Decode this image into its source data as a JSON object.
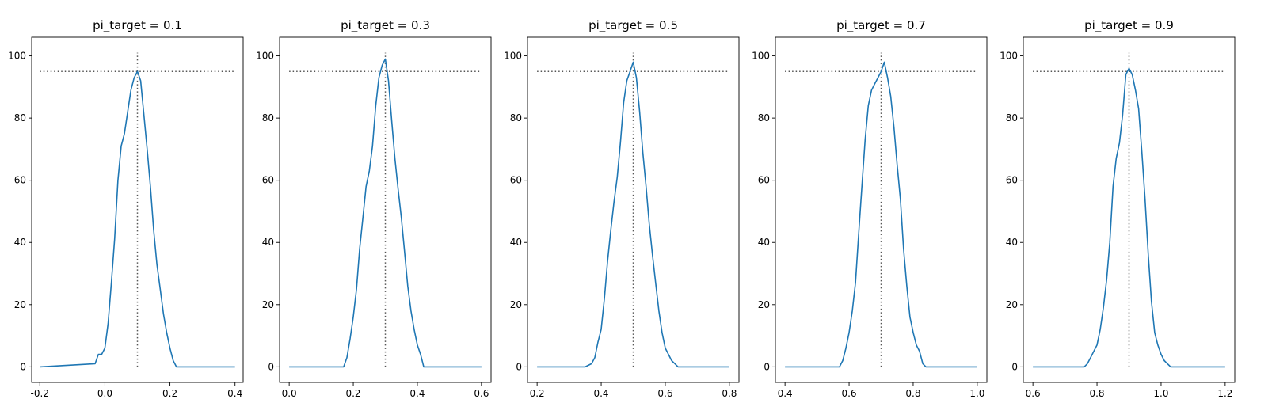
{
  "colors": {
    "line": "#1f77b4",
    "reference": "#555555",
    "axes": "#000000",
    "background": "#ffffff"
  },
  "chart_data": [
    {
      "type": "line",
      "title": "pi_target = 0.1",
      "xlabel": "",
      "ylabel": "",
      "xlim": [
        -0.225,
        0.425
      ],
      "ylim": [
        -5,
        106
      ],
      "xticks": [
        -0.2,
        0.0,
        0.2,
        0.4
      ],
      "xtick_labels": [
        "-0.2",
        "0.0",
        "0.2",
        "0.4"
      ],
      "yticks": [
        0,
        20,
        40,
        60,
        80,
        100
      ],
      "ytick_labels": [
        "0",
        "20",
        "40",
        "60",
        "80",
        "100"
      ],
      "grid": false,
      "target": 0.1,
      "reference_level": 95,
      "vline": {
        "x": 0.1,
        "y": [
          0,
          101
        ]
      },
      "hline": {
        "y": 95,
        "x": [
          -0.2,
          0.4
        ]
      },
      "series": [
        {
          "x": [
            -0.2,
            -0.03,
            -0.02,
            -0.01,
            0.0,
            0.01,
            0.02,
            0.03,
            0.04,
            0.05,
            0.06,
            0.07,
            0.08,
            0.09,
            0.1,
            0.11,
            0.12,
            0.13,
            0.14,
            0.15,
            0.16,
            0.17,
            0.18,
            0.19,
            0.2,
            0.21,
            0.22,
            0.23,
            0.4
          ],
          "y": [
            0,
            1,
            4,
            4,
            6,
            14,
            27,
            41,
            60,
            71,
            75,
            82,
            89,
            93,
            95,
            92,
            81,
            70,
            58,
            44,
            33,
            25,
            17,
            11,
            6,
            2,
            0,
            0,
            0
          ]
        }
      ]
    },
    {
      "type": "line",
      "title": "pi_target = 0.3",
      "xlabel": "",
      "ylabel": "",
      "xlim": [
        -0.03,
        0.63
      ],
      "ylim": [
        -5,
        106
      ],
      "xticks": [
        0.0,
        0.2,
        0.4,
        0.6
      ],
      "xtick_labels": [
        "0.0",
        "0.2",
        "0.4",
        "0.6"
      ],
      "yticks": [
        0,
        20,
        40,
        60,
        80,
        100
      ],
      "ytick_labels": [
        "0",
        "20",
        "40",
        "60",
        "80",
        "100"
      ],
      "grid": false,
      "target": 0.3,
      "reference_level": 95,
      "vline": {
        "x": 0.3,
        "y": [
          0,
          101
        ]
      },
      "hline": {
        "y": 95,
        "x": [
          0.0,
          0.6
        ]
      },
      "series": [
        {
          "x": [
            0.0,
            0.17,
            0.18,
            0.19,
            0.2,
            0.21,
            0.22,
            0.23,
            0.24,
            0.25,
            0.26,
            0.27,
            0.28,
            0.29,
            0.3,
            0.31,
            0.32,
            0.33,
            0.34,
            0.35,
            0.36,
            0.37,
            0.38,
            0.39,
            0.4,
            0.41,
            0.42,
            0.43,
            0.6
          ],
          "y": [
            0,
            0,
            3,
            9,
            16,
            25,
            38,
            48,
            58,
            63,
            71,
            84,
            93,
            97,
            99,
            92,
            79,
            67,
            57,
            48,
            37,
            26,
            18,
            12,
            7,
            4,
            0,
            0,
            0
          ]
        }
      ]
    },
    {
      "type": "line",
      "title": "pi_target = 0.5",
      "xlabel": "",
      "ylabel": "",
      "xlim": [
        0.17,
        0.83
      ],
      "ylim": [
        -5,
        106
      ],
      "xticks": [
        0.2,
        0.4,
        0.6,
        0.8
      ],
      "xtick_labels": [
        "0.2",
        "0.4",
        "0.6",
        "0.8"
      ],
      "yticks": [
        0,
        20,
        40,
        60,
        80,
        100
      ],
      "ytick_labels": [
        "0",
        "20",
        "40",
        "60",
        "80",
        "100"
      ],
      "grid": false,
      "target": 0.5,
      "reference_level": 95,
      "vline": {
        "x": 0.5,
        "y": [
          0,
          101
        ]
      },
      "hline": {
        "y": 95,
        "x": [
          0.2,
          0.8
        ]
      },
      "series": [
        {
          "x": [
            0.2,
            0.35,
            0.37,
            0.38,
            0.39,
            0.4,
            0.41,
            0.42,
            0.43,
            0.44,
            0.45,
            0.46,
            0.47,
            0.48,
            0.49,
            0.5,
            0.51,
            0.52,
            0.53,
            0.54,
            0.55,
            0.56,
            0.57,
            0.58,
            0.59,
            0.6,
            0.61,
            0.62,
            0.63,
            0.64,
            0.66,
            0.8
          ],
          "y": [
            0,
            0,
            1,
            3,
            8,
            12,
            22,
            34,
            44,
            53,
            61,
            72,
            85,
            92,
            95,
            98,
            93,
            82,
            69,
            58,
            46,
            36,
            27,
            18,
            11,
            6,
            4,
            2,
            1,
            0,
            0,
            0
          ]
        }
      ]
    },
    {
      "type": "line",
      "title": "pi_target = 0.7",
      "xlabel": "",
      "ylabel": "",
      "xlim": [
        0.37,
        1.03
      ],
      "ylim": [
        -5,
        106
      ],
      "xticks": [
        0.4,
        0.6,
        0.8,
        1.0
      ],
      "xtick_labels": [
        "0.4",
        "0.6",
        "0.8",
        "1.0"
      ],
      "yticks": [
        0,
        20,
        40,
        60,
        80,
        100
      ],
      "ytick_labels": [
        "0",
        "20",
        "40",
        "60",
        "80",
        "100"
      ],
      "grid": false,
      "target": 0.7,
      "reference_level": 95,
      "vline": {
        "x": 0.7,
        "y": [
          0,
          101
        ]
      },
      "hline": {
        "y": 95,
        "x": [
          0.4,
          1.0
        ]
      },
      "series": [
        {
          "x": [
            0.4,
            0.57,
            0.58,
            0.59,
            0.6,
            0.61,
            0.62,
            0.63,
            0.64,
            0.65,
            0.66,
            0.67,
            0.68,
            0.69,
            0.7,
            0.71,
            0.72,
            0.73,
            0.74,
            0.75,
            0.76,
            0.77,
            0.78,
            0.79,
            0.8,
            0.81,
            0.82,
            0.83,
            0.84,
            0.85,
            1.0
          ],
          "y": [
            0,
            0,
            2,
            6,
            11,
            18,
            27,
            43,
            58,
            73,
            84,
            89,
            91,
            93,
            95,
            98,
            93,
            87,
            77,
            65,
            54,
            38,
            26,
            16,
            11,
            7,
            5,
            1,
            0,
            0,
            0
          ]
        }
      ]
    },
    {
      "type": "line",
      "title": "pi_target = 0.9",
      "xlabel": "",
      "ylabel": "",
      "xlim": [
        0.57,
        1.23
      ],
      "ylim": [
        -5,
        106
      ],
      "xticks": [
        0.6,
        0.8,
        1.0,
        1.2
      ],
      "xtick_labels": [
        "0.6",
        "0.8",
        "1.0",
        "1.2"
      ],
      "yticks": [
        0,
        20,
        40,
        60,
        80,
        100
      ],
      "ytick_labels": [
        "0",
        "20",
        "40",
        "60",
        "80",
        "100"
      ],
      "grid": false,
      "target": 0.9,
      "reference_level": 95,
      "vline": {
        "x": 0.9,
        "y": [
          0,
          101
        ]
      },
      "hline": {
        "y": 95,
        "x": [
          0.6,
          1.2
        ]
      },
      "series": [
        {
          "x": [
            0.6,
            0.76,
            0.77,
            0.78,
            0.79,
            0.8,
            0.81,
            0.82,
            0.83,
            0.84,
            0.85,
            0.86,
            0.87,
            0.88,
            0.89,
            0.9,
            0.91,
            0.92,
            0.93,
            0.94,
            0.95,
            0.96,
            0.97,
            0.98,
            0.99,
            1.0,
            1.01,
            1.02,
            1.03,
            1.04,
            1.2
          ],
          "y": [
            0,
            0,
            1,
            3,
            5,
            7,
            12,
            19,
            28,
            40,
            58,
            67,
            72,
            81,
            94,
            96,
            94,
            89,
            83,
            69,
            54,
            36,
            21,
            11,
            7,
            4,
            2,
            1,
            0,
            0,
            0
          ]
        }
      ]
    }
  ]
}
